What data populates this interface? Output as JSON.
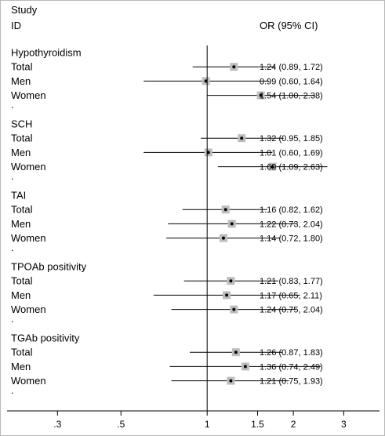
{
  "chart_data": {
    "type": "forest",
    "header": {
      "study": "Study",
      "id": "ID",
      "or_column": "OR (95% CI)"
    },
    "x_axis": {
      "scale": "log",
      "ticks": [
        ".3",
        ".5",
        "1",
        "1.5",
        "2",
        "3"
      ],
      "tick_values": [
        0.3,
        0.5,
        1,
        1.5,
        2,
        3
      ],
      "xlim": [
        0.2,
        4.0
      ],
      "reference_line": 1
    },
    "colors": {
      "box": "#bdbdbd",
      "line": "#000000",
      "point": "#000000"
    },
    "groups": [
      {
        "name": "Hypothyroidism",
        "rows": [
          {
            "label": "Total",
            "or": 1.24,
            "lo": 0.89,
            "hi": 1.72,
            "text": "1.24 (0.89, 1.72)"
          },
          {
            "label": "Men",
            "or": 0.99,
            "lo": 0.6,
            "hi": 1.64,
            "text": "0.99 (0.60, 1.64)"
          },
          {
            "label": "Women",
            "or": 1.54,
            "lo": 1.0,
            "hi": 2.38,
            "text": "1.54 (1.00, 2.38)"
          }
        ]
      },
      {
        "name": "SCH",
        "rows": [
          {
            "label": "Total",
            "or": 1.32,
            "lo": 0.95,
            "hi": 1.85,
            "text": "1.32 (0.95, 1.85)"
          },
          {
            "label": "Men",
            "or": 1.01,
            "lo": 0.6,
            "hi": 1.69,
            "text": "1.01 (0.60, 1.69)"
          },
          {
            "label": "Women",
            "or": 1.69,
            "lo": 1.09,
            "hi": 2.63,
            "text": "1.69 (1.09, 2.63)"
          }
        ]
      },
      {
        "name": "TAI",
        "rows": [
          {
            "label": "Total",
            "or": 1.16,
            "lo": 0.82,
            "hi": 1.62,
            "text": "1.16 (0.82, 1.62)"
          },
          {
            "label": "Men",
            "or": 1.22,
            "lo": 0.73,
            "hi": 2.04,
            "text": "1.22 (0.73, 2.04)"
          },
          {
            "label": "Women",
            "or": 1.14,
            "lo": 0.72,
            "hi": 1.8,
            "text": "1.14 (0.72, 1.80)"
          }
        ]
      },
      {
        "name": "TPOAb positivity",
        "rows": [
          {
            "label": "Total",
            "or": 1.21,
            "lo": 0.83,
            "hi": 1.77,
            "text": "1.21 (0.83, 1.77)"
          },
          {
            "label": "Men",
            "or": 1.17,
            "lo": 0.65,
            "hi": 2.11,
            "text": "1.17 (0.65, 2.11)"
          },
          {
            "label": "Women",
            "or": 1.24,
            "lo": 0.75,
            "hi": 2.04,
            "text": "1.24 (0.75, 2.04)"
          }
        ]
      },
      {
        "name": "TGAb positivity",
        "rows": [
          {
            "label": "Total",
            "or": 1.26,
            "lo": 0.87,
            "hi": 1.83,
            "text": "1.26 (0.87, 1.83)"
          },
          {
            "label": "Men",
            "or": 1.36,
            "lo": 0.74,
            "hi": 2.49,
            "text": "1.36 (0.74, 2.49)"
          },
          {
            "label": "Women",
            "or": 1.21,
            "lo": 0.75,
            "hi": 1.93,
            "text": "1.21 (0.75, 1.93)"
          }
        ]
      }
    ],
    "separator": "."
  }
}
